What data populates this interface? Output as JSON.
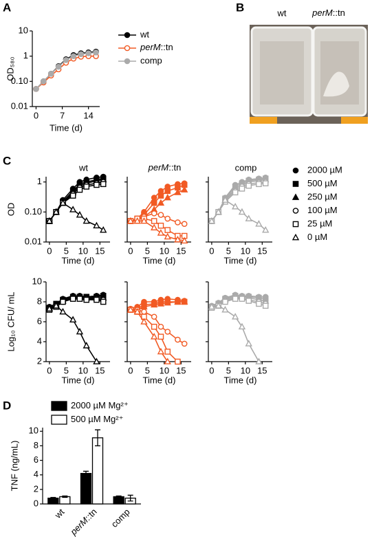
{
  "panel_labels": [
    "A",
    "B",
    "C",
    "D"
  ],
  "photo": {
    "labels": [
      "wt",
      "perM::tn"
    ]
  },
  "panel_c": {
    "legend": [
      {
        "name": "2000 µM",
        "marker": "circle",
        "filled": true
      },
      {
        "name": "500 µM",
        "marker": "square",
        "filled": true
      },
      {
        "name": "250 µM",
        "marker": "triangle",
        "filled": true
      },
      {
        "name": "100 µM",
        "marker": "circle",
        "filled": false
      },
      {
        "name": "25 µM",
        "marker": "square",
        "filled": false
      },
      {
        "name": "0 µM",
        "marker": "triangle",
        "filled": false
      }
    ]
  },
  "chart_data": [
    {
      "type": "line",
      "x_label": "Time (d)",
      "y_label": "OD₅₈₀",
      "log_y": true,
      "x": [
        0,
        2,
        4,
        6,
        8,
        10,
        12,
        14,
        16
      ],
      "xlim": [
        -1,
        17
      ],
      "xticks": [
        0,
        7,
        14
      ],
      "ylim": [
        0.01,
        10
      ],
      "yticks": [
        0.01,
        {
          "value": 0.1,
          "label": "0.10"
        },
        1,
        10
      ],
      "series": [
        {
          "name": "wt",
          "color": "#000000",
          "marker": "circle",
          "filled": true,
          "values": [
            0.05,
            0.1,
            0.2,
            0.4,
            0.75,
            1.1,
            1.3,
            1.4,
            1.5
          ]
        },
        {
          "name": "perM::tn",
          "color": "#f15a24",
          "marker": "circle",
          "filled": false,
          "values": [
            0.05,
            0.09,
            0.17,
            0.3,
            0.55,
            0.8,
            0.95,
            1.0,
            1.0
          ]
        },
        {
          "name": "comp",
          "color": "#aaaaaa",
          "marker": "circle",
          "filled": true,
          "values": [
            0.05,
            0.1,
            0.2,
            0.38,
            0.7,
            1.0,
            1.2,
            1.3,
            1.4
          ]
        }
      ]
    },
    {
      "type": "line",
      "title": "wt",
      "color": "#000000",
      "x_label": "Time (d)",
      "y_label": "OD",
      "log_y": true,
      "x": [
        0,
        2,
        4,
        7,
        9,
        11,
        14,
        16
      ],
      "xlim": [
        -1,
        18
      ],
      "xticks": [
        0,
        5,
        10,
        15
      ],
      "ylim": [
        0.01,
        1.5
      ],
      "yticks": [
        0.01,
        {
          "value": 0.1,
          "label": "0.10"
        },
        1
      ],
      "series": [
        {
          "marker": "circle",
          "filled": true,
          "values": [
            0.05,
            0.1,
            0.25,
            0.6,
            1.0,
            1.2,
            1.4,
            1.5
          ]
        },
        {
          "marker": "square",
          "filled": true,
          "values": [
            0.05,
            0.1,
            0.22,
            0.5,
            0.85,
            1.0,
            1.2,
            1.3
          ]
        },
        {
          "marker": "triangle",
          "filled": true,
          "values": [
            0.05,
            0.1,
            0.2,
            0.45,
            0.75,
            0.9,
            1.1,
            1.2
          ]
        },
        {
          "marker": "circle",
          "filled": false,
          "values": [
            0.05,
            0.1,
            0.2,
            0.4,
            0.65,
            0.8,
            0.9,
            1.0
          ]
        },
        {
          "marker": "square",
          "filled": false,
          "values": [
            0.05,
            0.1,
            0.2,
            0.35,
            0.55,
            0.7,
            0.8,
            0.85
          ]
        },
        {
          "marker": "triangle",
          "filled": false,
          "values": [
            0.05,
            0.1,
            0.2,
            0.12,
            0.08,
            0.05,
            0.035,
            0.025
          ]
        }
      ]
    },
    {
      "type": "line",
      "title": "perM::tn",
      "color": "#f15a24",
      "x_label": "Time (d)",
      "log_y": true,
      "show_ytick_labels": false,
      "x": [
        0,
        2,
        4,
        7,
        9,
        11,
        14,
        16
      ],
      "xlim": [
        -1,
        18
      ],
      "xticks": [
        0,
        5,
        10,
        15
      ],
      "ylim": [
        0.01,
        1.5
      ],
      "yticks": [
        0.01,
        0.1,
        1
      ],
      "series": [
        {
          "marker": "circle",
          "filled": true,
          "values": [
            0.05,
            0.06,
            0.1,
            0.3,
            0.5,
            0.7,
            0.85,
            0.9
          ]
        },
        {
          "marker": "square",
          "filled": true,
          "values": [
            0.05,
            0.06,
            0.08,
            0.2,
            0.35,
            0.5,
            0.65,
            0.8
          ]
        },
        {
          "marker": "triangle",
          "filled": true,
          "values": [
            0.05,
            0.05,
            0.07,
            0.12,
            0.2,
            0.3,
            0.45,
            0.55
          ]
        },
        {
          "marker": "circle",
          "filled": false,
          "values": [
            0.05,
            0.06,
            0.07,
            0.09,
            0.08,
            0.06,
            0.045,
            0.04
          ]
        },
        {
          "marker": "square",
          "filled": false,
          "values": [
            0.05,
            0.06,
            0.06,
            0.05,
            0.035,
            0.025,
            0.016,
            0.016
          ]
        },
        {
          "marker": "triangle",
          "filled": false,
          "values": [
            0.05,
            0.05,
            0.05,
            0.03,
            0.02,
            0.015,
            0.012,
            0.011
          ]
        }
      ]
    },
    {
      "type": "line",
      "title": "comp",
      "color": "#aaaaaa",
      "x_label": "Time (d)",
      "log_y": true,
      "show_ytick_labels": false,
      "x": [
        0,
        2,
        4,
        7,
        9,
        11,
        14,
        16
      ],
      "xlim": [
        -1,
        18
      ],
      "xticks": [
        0,
        5,
        10,
        15
      ],
      "ylim": [
        0.01,
        1.5
      ],
      "yticks": [
        0.01,
        0.1,
        1
      ],
      "series": [
        {
          "marker": "circle",
          "filled": true,
          "values": [
            0.05,
            0.1,
            0.3,
            0.8,
            1.0,
            1.2,
            1.3,
            1.4
          ]
        },
        {
          "marker": "square",
          "filled": true,
          "values": [
            0.05,
            0.1,
            0.28,
            0.7,
            0.9,
            1.1,
            1.2,
            1.3
          ]
        },
        {
          "marker": "triangle",
          "filled": true,
          "values": [
            0.05,
            0.1,
            0.25,
            0.6,
            0.8,
            1.0,
            1.1,
            1.2
          ]
        },
        {
          "marker": "circle",
          "filled": false,
          "values": [
            0.05,
            0.1,
            0.25,
            0.5,
            0.7,
            0.85,
            0.95,
            1.0
          ]
        },
        {
          "marker": "square",
          "filled": false,
          "values": [
            0.05,
            0.1,
            0.22,
            0.45,
            0.6,
            0.75,
            0.85,
            0.9
          ]
        },
        {
          "marker": "triangle",
          "filled": false,
          "values": [
            0.05,
            0.1,
            0.25,
            0.15,
            0.1,
            0.06,
            0.04,
            0.025
          ]
        }
      ]
    },
    {
      "type": "line",
      "color": "#000000",
      "x_label": "Time (d)",
      "y_label": "Log₁₀ CFU/ mL",
      "x": [
        0,
        2,
        4,
        7,
        9,
        11,
        14,
        16
      ],
      "xlim": [
        -1,
        18
      ],
      "xticks": [
        0,
        5,
        10,
        15
      ],
      "ylim": [
        2,
        10
      ],
      "yticks": [
        2,
        4,
        6,
        8,
        10
      ],
      "series": [
        {
          "marker": "circle",
          "filled": true,
          "values": [
            7.5,
            7.8,
            8.3,
            8.6,
            8.6,
            8.5,
            8.6,
            8.7
          ]
        },
        {
          "marker": "square",
          "filled": true,
          "values": [
            7.4,
            7.8,
            8.2,
            8.5,
            8.5,
            8.5,
            8.5,
            8.6
          ]
        },
        {
          "marker": "triangle",
          "filled": true,
          "values": [
            7.3,
            7.7,
            8.1,
            8.5,
            8.5,
            8.4,
            8.4,
            8.4
          ]
        },
        {
          "marker": "circle",
          "filled": false,
          "values": [
            7.3,
            7.6,
            8.0,
            8.4,
            8.4,
            8.3,
            8.3,
            8.2
          ]
        },
        {
          "marker": "square",
          "filled": false,
          "values": [
            7.2,
            7.5,
            8.0,
            8.3,
            8.3,
            8.2,
            8.2,
            8.0
          ]
        },
        {
          "marker": "triangle",
          "filled": false,
          "values": [
            7.3,
            7.6,
            7.0,
            6.2,
            5.0,
            3.6,
            2.0,
            null
          ]
        }
      ]
    },
    {
      "type": "line",
      "color": "#f15a24",
      "x_label": "Time (d)",
      "show_ytick_labels": false,
      "x": [
        0,
        2,
        4,
        7,
        9,
        11,
        14,
        16
      ],
      "xlim": [
        -1,
        18
      ],
      "xticks": [
        0,
        5,
        10,
        15
      ],
      "ylim": [
        2,
        10
      ],
      "yticks": [
        2,
        4,
        6,
        8,
        10
      ],
      "series": [
        {
          "marker": "circle",
          "filled": true,
          "values": [
            7.3,
            7.5,
            8.0,
            8.0,
            8.2,
            8.3,
            8.2,
            8.1
          ]
        },
        {
          "marker": "square",
          "filled": true,
          "values": [
            7.2,
            7.3,
            7.7,
            7.8,
            8.0,
            8.0,
            8.0,
            8.0
          ]
        },
        {
          "marker": "triangle",
          "filled": true,
          "values": [
            7.2,
            7.2,
            7.5,
            7.7,
            7.8,
            7.9,
            8.0,
            8.0
          ]
        },
        {
          "marker": "circle",
          "filled": false,
          "values": [
            7.2,
            7.2,
            7.0,
            6.5,
            5.5,
            5.0,
            4.2,
            3.8
          ]
        },
        {
          "marker": "square",
          "filled": false,
          "values": [
            7.2,
            7.0,
            6.5,
            5.5,
            4.5,
            3.0,
            2.0,
            null
          ]
        },
        {
          "marker": "triangle",
          "filled": false,
          "values": [
            7.2,
            7.0,
            6.0,
            4.5,
            3.0,
            2.0,
            null,
            null
          ]
        }
      ]
    },
    {
      "type": "line",
      "color": "#aaaaaa",
      "x_label": "Time (d)",
      "show_ytick_labels": false,
      "x": [
        0,
        2,
        4,
        7,
        9,
        11,
        14,
        16
      ],
      "xlim": [
        -1,
        18
      ],
      "xticks": [
        0,
        5,
        10,
        15
      ],
      "ylim": [
        2,
        10
      ],
      "yticks": [
        2,
        4,
        6,
        8,
        10
      ],
      "series": [
        {
          "marker": "circle",
          "filled": true,
          "values": [
            7.6,
            7.9,
            8.4,
            8.7,
            8.6,
            8.6,
            8.5,
            8.5
          ]
        },
        {
          "marker": "square",
          "filled": true,
          "values": [
            7.5,
            7.8,
            8.3,
            8.6,
            8.5,
            8.5,
            8.4,
            8.3
          ]
        },
        {
          "marker": "triangle",
          "filled": true,
          "values": [
            7.5,
            7.7,
            8.2,
            8.5,
            8.5,
            8.4,
            8.2,
            8.1
          ]
        },
        {
          "marker": "circle",
          "filled": false,
          "values": [
            7.4,
            7.6,
            8.1,
            8.4,
            8.4,
            8.2,
            8.0,
            7.8
          ]
        },
        {
          "marker": "square",
          "filled": false,
          "values": [
            7.4,
            7.6,
            8.0,
            8.3,
            8.3,
            8.1,
            7.8,
            7.6
          ]
        },
        {
          "marker": "triangle",
          "filled": false,
          "values": [
            7.5,
            7.6,
            7.2,
            6.5,
            5.5,
            3.8,
            2.0,
            null
          ]
        }
      ]
    },
    {
      "type": "bar",
      "y_label": "TNF (ng/mL)",
      "categories": [
        "wt",
        "perM::tn",
        "comp"
      ],
      "ylim": [
        0,
        10.5
      ],
      "yticks": [
        0,
        2,
        4,
        6,
        8,
        10
      ],
      "series": [
        {
          "name": "2000 µM Mg²⁺",
          "color": "#000000",
          "values": [
            0.8,
            4.2,
            1.0
          ],
          "errors": [
            0.1,
            0.3,
            0.1
          ]
        },
        {
          "name": "500 µM Mg²⁺",
          "color": "#ffffff",
          "values": [
            1.0,
            9.1,
            0.8
          ],
          "errors": [
            0.1,
            1.1,
            0.4
          ]
        }
      ]
    }
  ]
}
